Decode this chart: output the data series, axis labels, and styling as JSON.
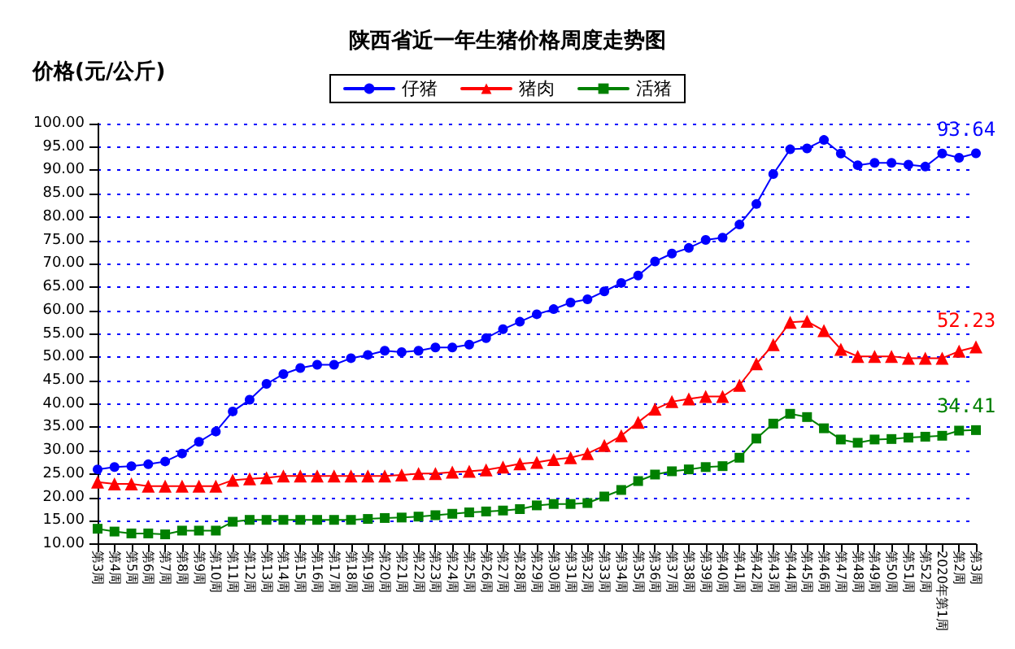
{
  "chart_data": {
    "type": "line",
    "title": "陕西省近一年生猪价格周度走势图",
    "ylabel": "价格(元/公斤)",
    "categories": [
      "第3周",
      "第4周",
      "第5周",
      "第6周",
      "第7周",
      "第8周",
      "第9周",
      "第10周",
      "第11周",
      "第12周",
      "第13周",
      "第14周",
      "第15周",
      "第16周",
      "第17周",
      "第18周",
      "第19周",
      "第20周",
      "第21周",
      "第22周",
      "第23周",
      "第24周",
      "第25周",
      "第26周",
      "第27周",
      "第28周",
      "第29周",
      "第30周",
      "第31周",
      "第32周",
      "第33周",
      "第34周",
      "第35周",
      "第36周",
      "第37周",
      "第38周",
      "第39周",
      "第40周",
      "第41周",
      "第42周",
      "第43周",
      "第44周",
      "第45周",
      "第46周",
      "第47周",
      "第48周",
      "第49周",
      "第50周",
      "第51周",
      "第52周",
      "2020年第1周",
      "第2周",
      "第3周"
    ],
    "series": [
      {
        "name": "仔猪",
        "color": "#0000ff",
        "marker": "circle",
        "values": [
          26.0,
          26.5,
          26.7,
          27.1,
          27.7,
          29.4,
          31.9,
          34.1,
          38.4,
          40.9,
          44.3,
          46.4,
          47.7,
          48.4,
          48.4,
          49.8,
          50.5,
          51.4,
          51.1,
          51.4,
          52.1,
          52.1,
          52.7,
          54.1,
          56.0,
          57.6,
          59.2,
          60.3,
          61.7,
          62.4,
          64.1,
          65.9,
          67.5,
          70.5,
          72.2,
          73.4,
          75.1,
          75.6,
          78.4,
          82.8,
          89.2,
          94.5,
          94.7,
          96.5,
          93.6,
          91.1,
          91.6,
          91.6,
          91.2,
          90.8,
          93.6,
          92.7,
          93.64
        ],
        "value_labels": [
          null,
          null,
          null,
          null,
          null,
          null,
          null,
          null,
          null,
          null,
          null,
          null,
          null,
          null,
          null,
          null,
          null,
          null,
          null,
          null,
          null,
          null,
          null,
          null,
          null,
          null,
          null,
          null,
          null,
          null,
          null,
          null,
          null,
          null,
          null,
          null,
          null,
          null,
          null,
          null,
          null,
          null,
          null,
          null,
          null,
          null,
          null,
          null,
          null,
          null,
          null,
          null,
          "93.64"
        ]
      },
      {
        "name": "猪肉",
        "color": "#ff0000",
        "marker": "triangle",
        "values": [
          23.3,
          22.9,
          22.9,
          22.4,
          22.4,
          22.4,
          22.4,
          22.4,
          23.7,
          24.0,
          24.2,
          24.6,
          24.6,
          24.6,
          24.6,
          24.6,
          24.6,
          24.6,
          24.8,
          25.1,
          25.1,
          25.4,
          25.6,
          25.9,
          26.5,
          27.2,
          27.5,
          28.1,
          28.5,
          29.4,
          31.1,
          33.2,
          36.1,
          38.9,
          40.5,
          41.1,
          41.6,
          41.6,
          44.0,
          48.6,
          52.7,
          57.5,
          57.7,
          55.7,
          51.7,
          50.2,
          50.2,
          50.2,
          49.8,
          49.8,
          49.8,
          51.3,
          52.23
        ],
        "value_labels": [
          null,
          null,
          null,
          null,
          null,
          null,
          null,
          null,
          null,
          null,
          null,
          null,
          null,
          null,
          null,
          null,
          null,
          null,
          null,
          null,
          null,
          null,
          null,
          null,
          null,
          null,
          null,
          null,
          null,
          null,
          null,
          null,
          null,
          null,
          null,
          null,
          null,
          null,
          null,
          null,
          null,
          null,
          null,
          null,
          null,
          null,
          null,
          null,
          null,
          null,
          null,
          null,
          "52.23"
        ]
      },
      {
        "name": "活猪",
        "color": "#008000",
        "marker": "square",
        "values": [
          13.3,
          12.7,
          12.3,
          12.3,
          12.1,
          12.9,
          12.9,
          12.9,
          14.8,
          15.2,
          15.2,
          15.2,
          15.2,
          15.2,
          15.2,
          15.2,
          15.4,
          15.6,
          15.7,
          15.9,
          16.2,
          16.5,
          16.8,
          17.0,
          17.2,
          17.5,
          18.3,
          18.6,
          18.6,
          18.8,
          20.2,
          21.6,
          23.5,
          24.9,
          25.6,
          26.0,
          26.5,
          26.7,
          28.5,
          32.6,
          35.8,
          37.9,
          37.2,
          34.8,
          32.4,
          31.7,
          32.4,
          32.5,
          32.8,
          33.0,
          33.2,
          34.3,
          34.41
        ],
        "value_labels": [
          null,
          null,
          null,
          null,
          null,
          null,
          null,
          null,
          null,
          null,
          null,
          null,
          null,
          null,
          null,
          null,
          null,
          null,
          null,
          null,
          null,
          null,
          null,
          null,
          null,
          null,
          null,
          null,
          null,
          null,
          null,
          null,
          null,
          null,
          null,
          null,
          null,
          null,
          null,
          null,
          null,
          null,
          null,
          null,
          null,
          null,
          null,
          null,
          null,
          null,
          null,
          null,
          "34.41"
        ]
      }
    ],
    "ylim": [
      10,
      100
    ],
    "yticks": [
      {
        "value": 10,
        "label": "10.00"
      },
      {
        "value": 15,
        "label": "15.00"
      },
      {
        "value": 20,
        "label": "20.00"
      },
      {
        "value": 25,
        "label": "25.00"
      },
      {
        "value": 30,
        "label": "30.00"
      },
      {
        "value": 35,
        "label": "35.00"
      },
      {
        "value": 40,
        "label": "40.00"
      },
      {
        "value": 45,
        "label": "45.00"
      },
      {
        "value": 50,
        "label": "50.00"
      },
      {
        "value": 55,
        "label": "55.00"
      },
      {
        "value": 60,
        "label": "60.00"
      },
      {
        "value": 65,
        "label": "65.00"
      },
      {
        "value": 70,
        "label": "70.00"
      },
      {
        "value": 75,
        "label": "75.00"
      },
      {
        "value": 80,
        "label": "80.00"
      },
      {
        "value": 85,
        "label": "85.00"
      },
      {
        "value": 90,
        "label": "90.00"
      },
      {
        "value": 95,
        "label": "95.00"
      },
      {
        "value": 100,
        "label": "100.00"
      }
    ],
    "grid": "y",
    "legend": "top",
    "line_style": "solid"
  }
}
